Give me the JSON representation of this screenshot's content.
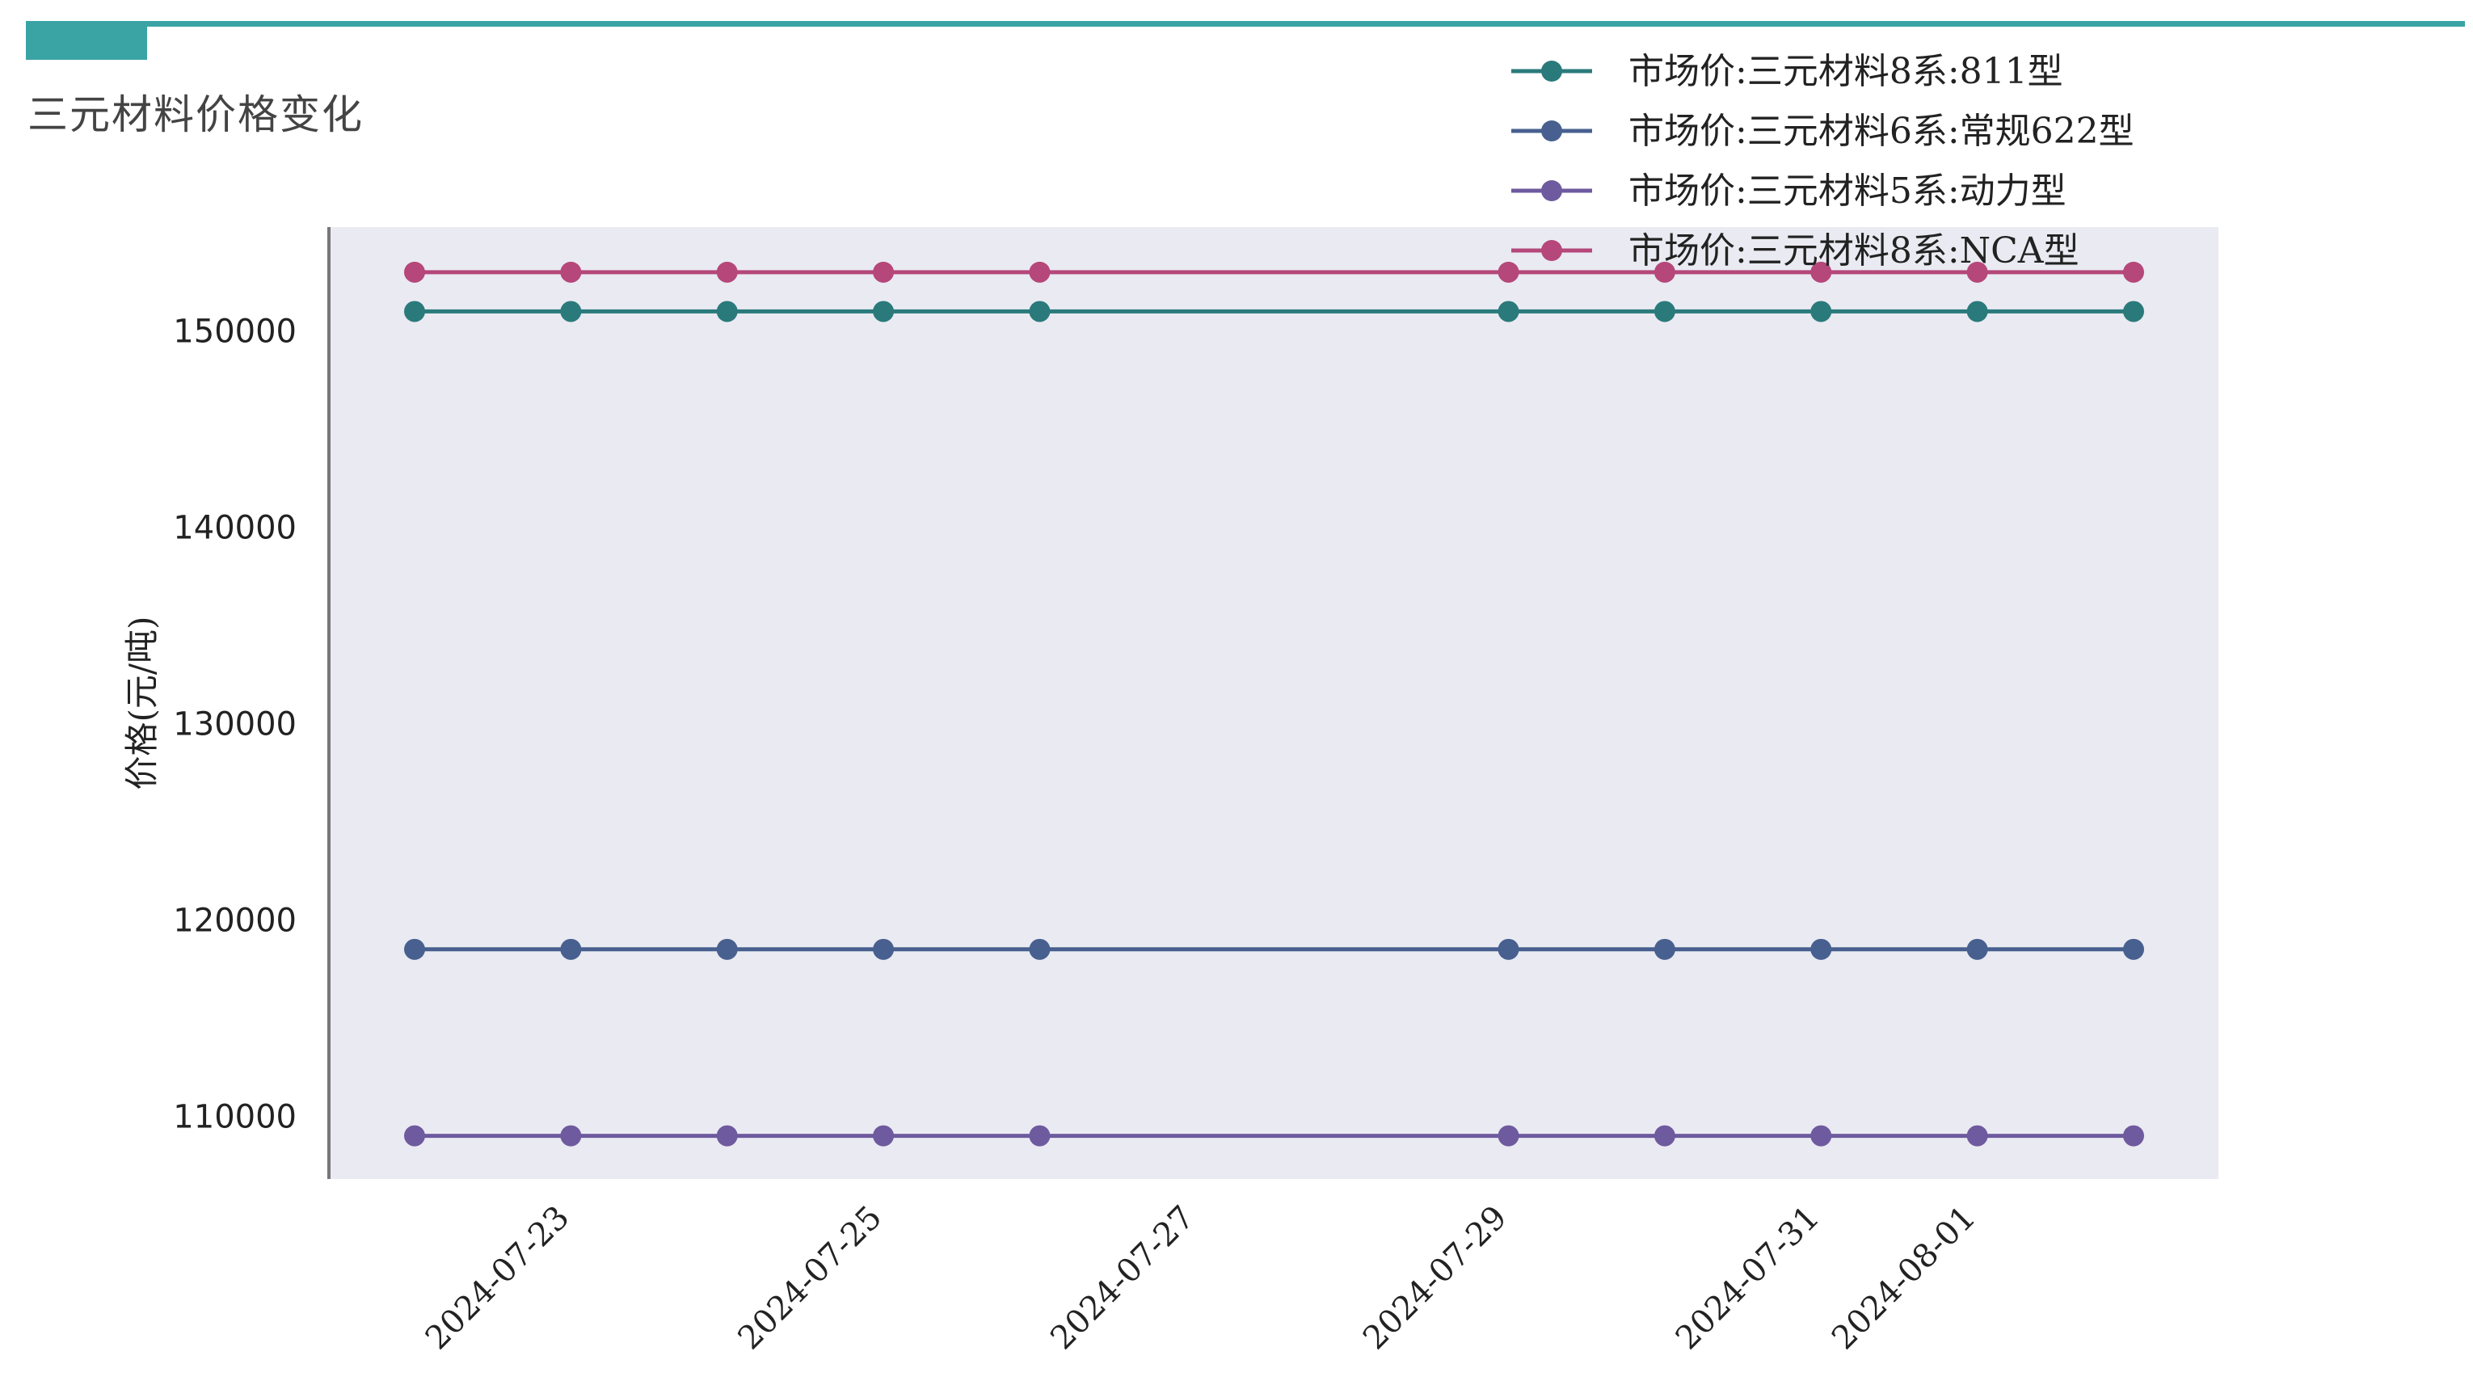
{
  "page": {
    "title": "三元材料价格变化"
  },
  "chart_data": {
    "type": "line",
    "title": "",
    "xlabel": "",
    "ylabel": "价格(元/吨)",
    "x": [
      "2024-07-22",
      "2024-07-23",
      "2024-07-24",
      "2024-07-25",
      "2024-07-26",
      "2024-07-29",
      "2024-07-30",
      "2024-07-31",
      "2024-08-01",
      "2024-08-02"
    ],
    "xticks": [
      "2024-07-23",
      "2024-07-25",
      "2024-07-27",
      "2024-07-29",
      "2024-07-31",
      "2024-08-01"
    ],
    "yticks": [
      110000,
      120000,
      130000,
      140000,
      150000
    ],
    "ylim": [
      106800,
      155300
    ],
    "grid": false,
    "legend_position": "top-right",
    "background": "#eaeaf2",
    "series": [
      {
        "name": "市场价:三元材料8系:811型",
        "color": "#2a7a7b",
        "values": [
          151000,
          151000,
          151000,
          151000,
          151000,
          151000,
          151000,
          151000,
          151000,
          151000
        ]
      },
      {
        "name": "市场价:三元材料6系:常规622型",
        "color": "#48608f",
        "values": [
          118500,
          118500,
          118500,
          118500,
          118500,
          118500,
          118500,
          118500,
          118500,
          118500
        ]
      },
      {
        "name": "市场价:三元材料5系:动力型",
        "color": "#6e5a9e",
        "values": [
          109000,
          109000,
          109000,
          109000,
          109000,
          109000,
          109000,
          109000,
          109000,
          109000
        ]
      },
      {
        "name": "市场价:三元材料8系:NCA型",
        "color": "#b5477a",
        "values": [
          153000,
          153000,
          153000,
          153000,
          153000,
          153000,
          153000,
          153000,
          153000,
          153000
        ]
      }
    ]
  }
}
